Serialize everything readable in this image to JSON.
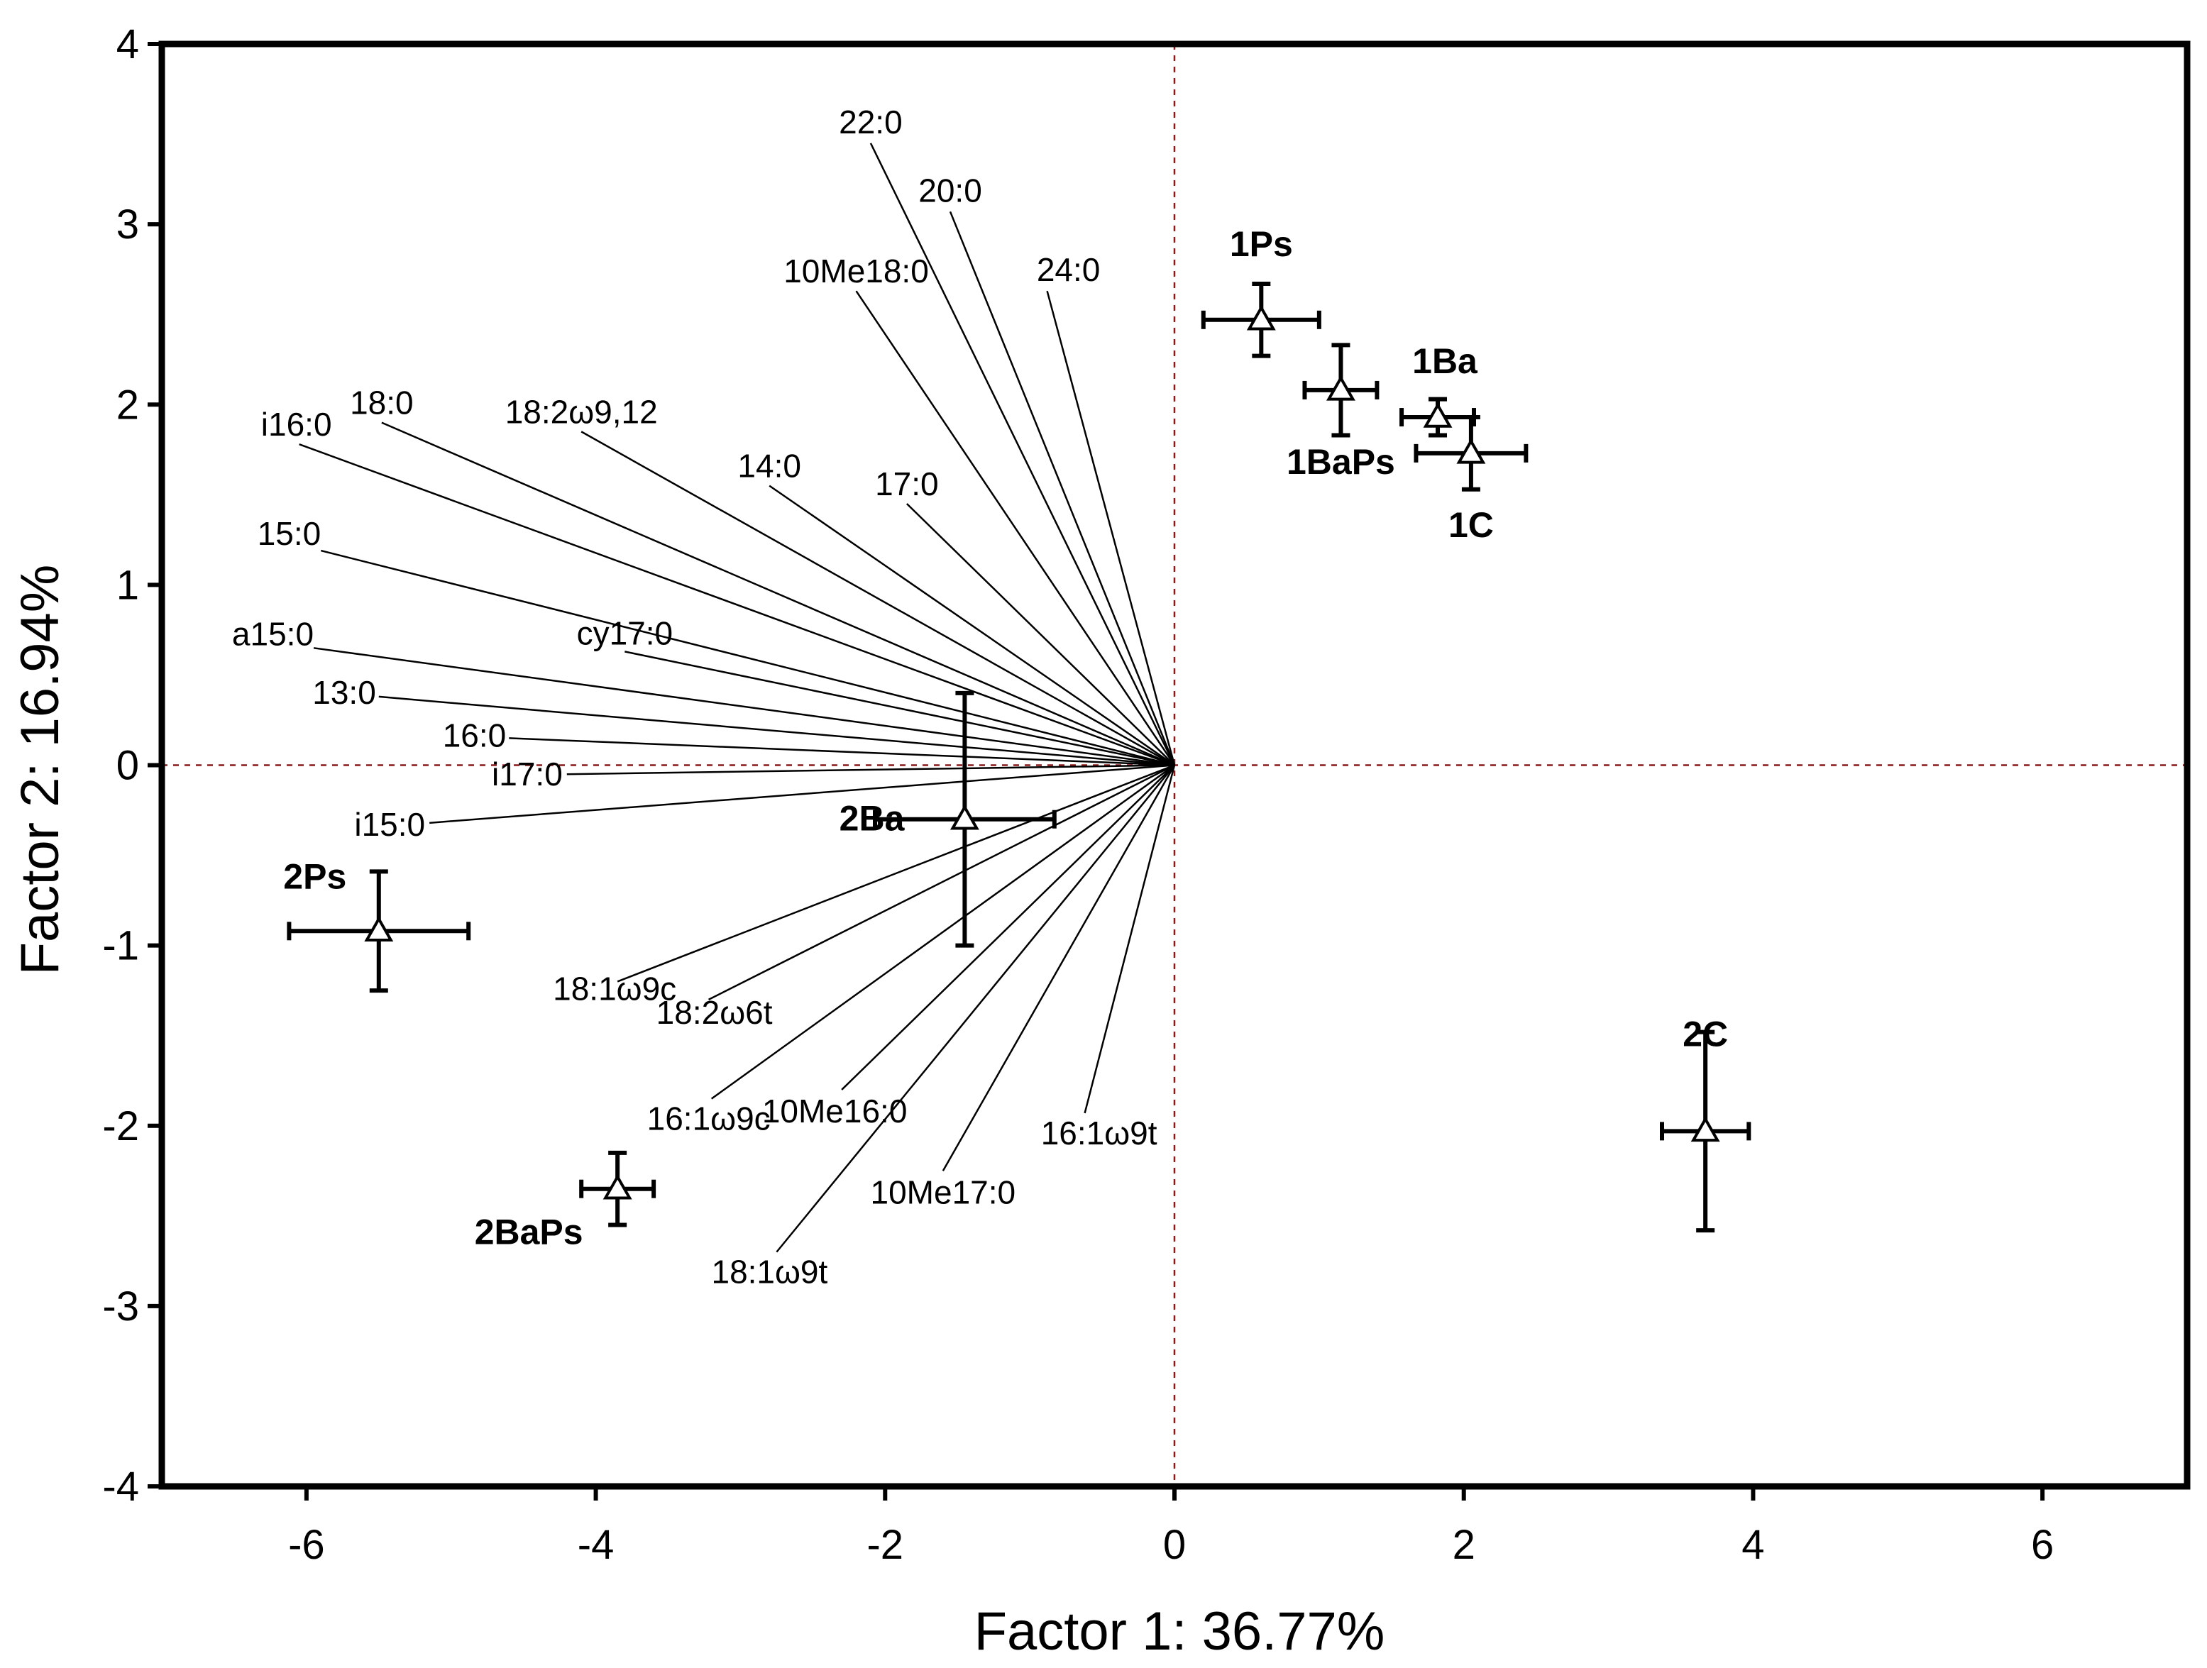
{
  "chart_data": {
    "type": "scatter",
    "title": "",
    "xlabel": "Factor 1: 36.77%",
    "ylabel": "Factor 2: 16.94%",
    "xlim": [
      -7,
      7
    ],
    "ylim": [
      -4,
      4
    ],
    "xticks": [
      -6,
      -4,
      -2,
      0,
      2,
      4,
      6
    ],
    "yticks": [
      -4,
      -3,
      -2,
      -1,
      0,
      1,
      2,
      3,
      4
    ],
    "xtick_labels": [
      "-6",
      "-4",
      "-2",
      "0",
      "2",
      "4",
      "6"
    ],
    "ytick_labels": [
      "-4",
      "-3",
      "-2",
      "-1",
      "0",
      "1",
      "2",
      "3",
      "4"
    ],
    "vectors": [
      {
        "label": "22:0",
        "x": -2.1,
        "y": 3.45
      },
      {
        "label": "20:0",
        "x": -1.55,
        "y": 3.07
      },
      {
        "label": "10Me18:0",
        "x": -2.2,
        "y": 2.63
      },
      {
        "label": "24:0",
        "x": -0.88,
        "y": 2.63
      },
      {
        "label": "i16:0",
        "x": -6.05,
        "y": 1.78
      },
      {
        "label": "18:0",
        "x": -5.48,
        "y": 1.9
      },
      {
        "label": "18:2ω9,12",
        "x": -4.1,
        "y": 1.85
      },
      {
        "label": "14:0",
        "x": -2.8,
        "y": 1.55
      },
      {
        "label": "17:0",
        "x": -1.85,
        "y": 1.45
      },
      {
        "label": "15:0",
        "x": -5.9,
        "y": 1.19
      },
      {
        "label": "a15:0",
        "x": -5.95,
        "y": 0.65
      },
      {
        "label": "cy17:0",
        "x": -3.8,
        "y": 0.63
      },
      {
        "label": "13:0",
        "x": -5.5,
        "y": 0.38
      },
      {
        "label": "16:0",
        "x": -4.6,
        "y": 0.15
      },
      {
        "label": "i17:0",
        "x": -4.2,
        "y": -0.05
      },
      {
        "label": "i15:0",
        "x": -5.15,
        "y": -0.32
      },
      {
        "label": "18:1ω9c",
        "x": -3.85,
        "y": -1.2
      },
      {
        "label": "18:2ω6t",
        "x": -3.22,
        "y": -1.3
      },
      {
        "label": "16:1ω9c",
        "x": -3.2,
        "y": -1.85
      },
      {
        "label": "10Me16:0",
        "x": -2.3,
        "y": -1.8
      },
      {
        "label": "16:1ω9t",
        "x": -0.62,
        "y": -1.93
      },
      {
        "label": "10Me17:0",
        "x": -1.6,
        "y": -2.25
      },
      {
        "label": "18:1ω9t",
        "x": -2.75,
        "y": -2.7
      }
    ],
    "groups": [
      {
        "label": "1Ps",
        "x": 0.6,
        "y": 2.47,
        "xerr": 0.4,
        "yerr": 0.2
      },
      {
        "label": "1BaPs",
        "x": 1.15,
        "y": 2.08,
        "xerr": 0.25,
        "yerr": 0.25
      },
      {
        "label": "1Ba",
        "x": 1.82,
        "y": 1.93,
        "xerr": 0.25,
        "yerr": 0.1
      },
      {
        "label": "1C",
        "x": 2.05,
        "y": 1.73,
        "xerr": 0.38,
        "yerr": 0.2
      },
      {
        "label": "2Ba",
        "x": -1.45,
        "y": -0.3,
        "xerr": 0.62,
        "yerr": 0.7
      },
      {
        "label": "2Ps",
        "x": -5.5,
        "y": -0.92,
        "xerr": 0.62,
        "yerr": 0.33
      },
      {
        "label": "2BaPs",
        "x": -3.85,
        "y": -2.35,
        "xerr": 0.25,
        "yerr": 0.2
      },
      {
        "label": "2C",
        "x": 3.67,
        "y": -2.03,
        "xerr": 0.3,
        "yerr": 0.55
      }
    ]
  }
}
